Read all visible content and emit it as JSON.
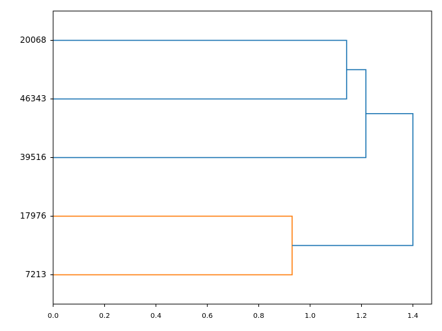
{
  "chart_data": {
    "type": "dendrogram",
    "orientation": "left",
    "tree": {
      "height": 1.4,
      "color": "#1f77b4",
      "children": [
        {
          "height": 1.217,
          "color": "#1f77b4",
          "children": [
            {
              "height": 1.142,
              "color": "#1f77b4",
              "children": [
                {
                  "label": "20068"
                },
                {
                  "label": "46343"
                }
              ]
            },
            {
              "label": "39516"
            }
          ]
        },
        {
          "height": 0.93,
          "color": "#ff7f0e",
          "children": [
            {
              "label": "17976"
            },
            {
              "label": "7213"
            }
          ]
        }
      ]
    },
    "xlim": [
      0,
      1.473
    ],
    "xticks": [
      {
        "value": 0,
        "label": "0.0"
      },
      0.2,
      0.4,
      0.6,
      0.8,
      {
        "value": 1,
        "label": "1.0"
      },
      1.2,
      1.4
    ]
  }
}
